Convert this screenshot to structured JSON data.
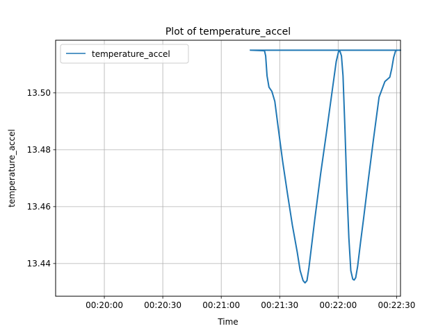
{
  "chart_data": {
    "type": "line",
    "title": "Plot of temperature_accel",
    "xlabel": "Time",
    "ylabel": "temperature_accel",
    "grid": true,
    "legend_position": "top-left",
    "x_unit": "seconds since 00:00:00",
    "xlim": [
      1175,
      1352
    ],
    "ylim": [
      13.4285,
      13.5185
    ],
    "xticks": [
      1200,
      1230,
      1260,
      1290,
      1320,
      1350
    ],
    "xtick_labels": [
      "00:20:00",
      "00:20:30",
      "00:21:00",
      "00:21:30",
      "00:22:00",
      "00:22:30"
    ],
    "yticks": [
      13.44,
      13.46,
      13.48,
      13.5
    ],
    "ytick_labels": [
      "13.44",
      "13.46",
      "13.48",
      "13.50"
    ],
    "series": [
      {
        "name": "temperature_accel",
        "color": "#1f77b4",
        "x": [
          1275.0,
          1282.2,
          1282.8,
          1283.5,
          1284.5,
          1286.0,
          1287.5,
          1289.0,
          1291.5,
          1294.0,
          1296.5,
          1299.0,
          1300.5,
          1302.0,
          1303.0,
          1304.0,
          1305.0,
          1306.5,
          1308.0,
          1311.0,
          1314.0,
          1317.0,
          1319.0,
          1320.3,
          1321.0,
          1321.7,
          1322.5,
          1323.5,
          1324.5,
          1325.5,
          1326.5,
          1327.5,
          1328.2,
          1329.0,
          1330.0,
          1331.5,
          1333.0,
          1335.5,
          1338.0,
          1341.0,
          1344.0,
          1346.5,
          1347.5,
          1348.5,
          1349.5,
          1350.5,
          1351.9,
          1352.0,
          1275.0
        ],
        "y": [
          13.515,
          13.5148,
          13.513,
          13.506,
          13.502,
          13.5005,
          13.497,
          13.489,
          13.476,
          13.4645,
          13.4535,
          13.444,
          13.4375,
          13.434,
          13.4332,
          13.434,
          13.4385,
          13.447,
          13.4555,
          13.4715,
          13.486,
          13.501,
          13.511,
          13.5148,
          13.5145,
          13.513,
          13.506,
          13.487,
          13.466,
          13.449,
          13.4375,
          13.4345,
          13.4342,
          13.435,
          13.439,
          13.4475,
          13.4555,
          13.4695,
          13.483,
          13.4985,
          13.504,
          13.5055,
          13.5085,
          13.5125,
          13.5148,
          13.515,
          13.515,
          13.515,
          13.515
        ]
      }
    ]
  }
}
